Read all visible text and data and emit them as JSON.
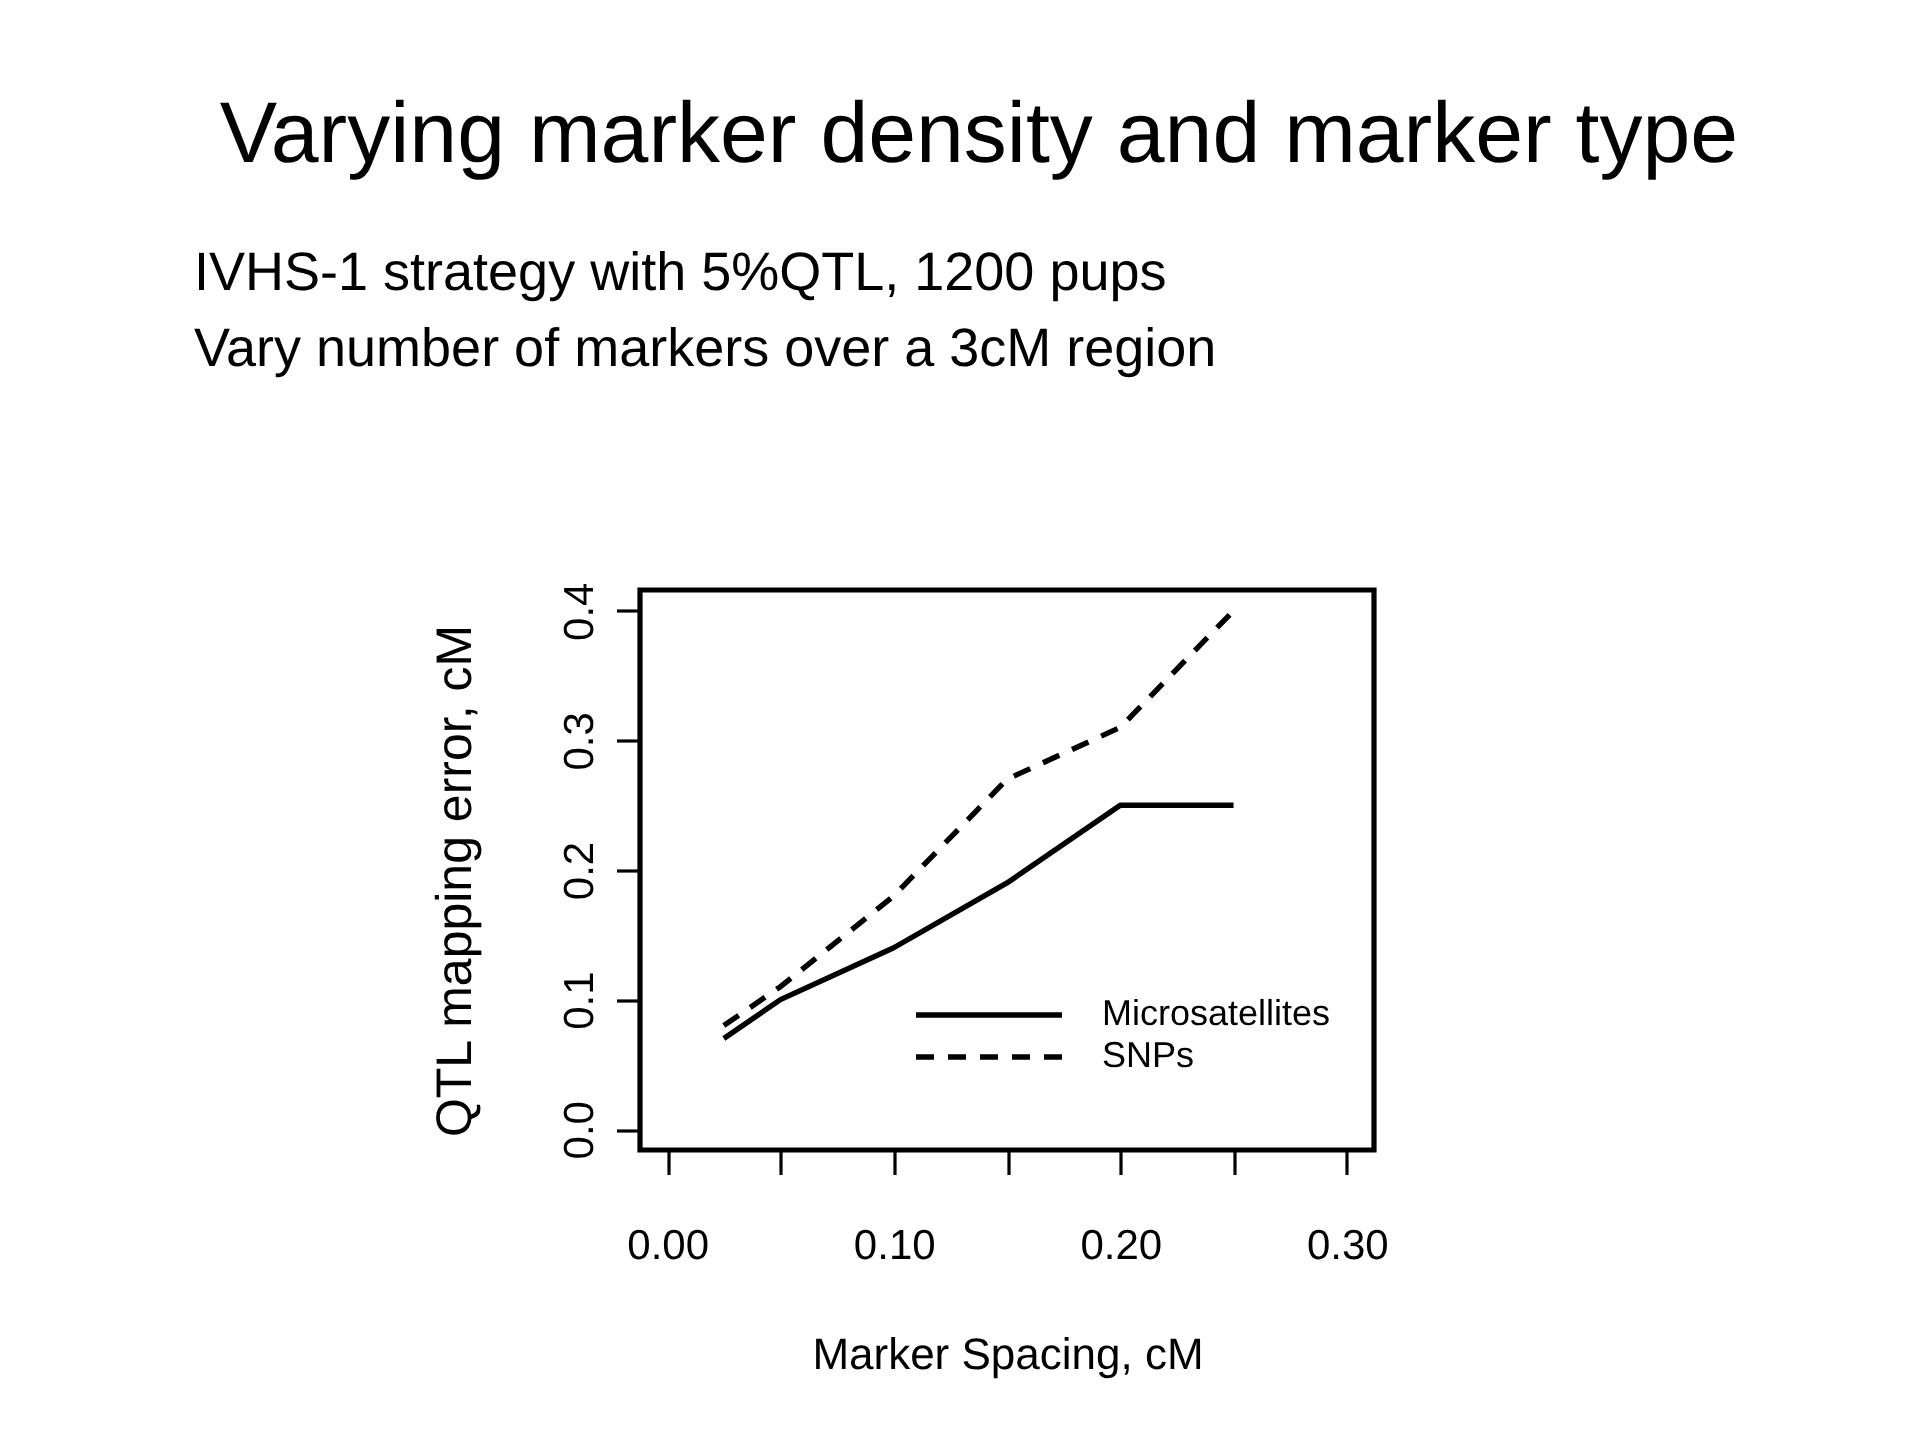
{
  "chart_data": {
    "type": "line",
    "title": "Varying marker density and marker type",
    "annotations": [
      "IVHS-1 strategy with 5%QTL, 1200 pups",
      "Vary number of markers over a 3cM region"
    ],
    "xlabel": "Marker Spacing, cM",
    "ylabel": "QTL mapping error, cM",
    "x": [
      0.025,
      0.05,
      0.1,
      0.15,
      0.2,
      0.25
    ],
    "series": [
      {
        "name": "Microsatellites",
        "color": "#000000",
        "line_style": "solid",
        "values": [
          0.07,
          0.1,
          0.14,
          0.19,
          0.25,
          0.25
        ]
      },
      {
        "name": "SNPs",
        "color": "#000000",
        "line_style": "dashed",
        "values": [
          0.08,
          0.11,
          0.18,
          0.27,
          0.31,
          0.4
        ]
      }
    ],
    "xlim": [
      -0.012,
      0.312
    ],
    "ylim": [
      -0.016,
      0.416
    ],
    "xticks": [
      {
        "value": 0,
        "label": "0.00"
      },
      {
        "value": 0.05,
        "label": null
      },
      {
        "value": 0.1,
        "label": "0.10"
      },
      {
        "value": 0.15,
        "label": null
      },
      {
        "value": 0.2,
        "label": "0.20"
      },
      {
        "value": 0.25,
        "label": null
      },
      {
        "value": 0.3,
        "label": "0.30"
      }
    ],
    "yticks": [
      {
        "value": 0,
        "label": "0.0"
      },
      {
        "value": 0.1,
        "label": "0.1"
      },
      {
        "value": 0.2,
        "label": "0.2"
      },
      {
        "value": 0.3,
        "label": "0.3"
      },
      {
        "value": 0.4,
        "label": "0.4"
      }
    ],
    "legend": "bottom right"
  }
}
